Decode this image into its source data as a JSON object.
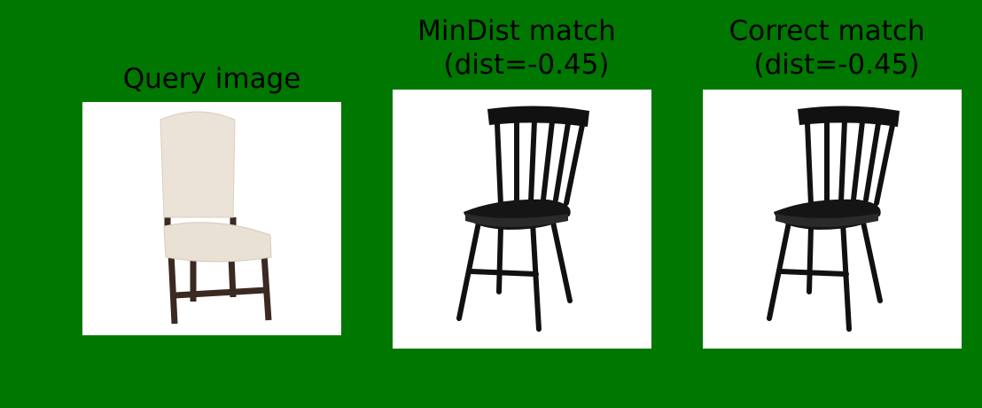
{
  "panels": [
    {
      "title_lines": [
        "Query image"
      ]
    },
    {
      "title_lines": [
        "MinDist match",
        "(dist=-0.45)"
      ]
    },
    {
      "title_lines": [
        "Correct match",
        "(dist=-0.45)"
      ]
    }
  ]
}
